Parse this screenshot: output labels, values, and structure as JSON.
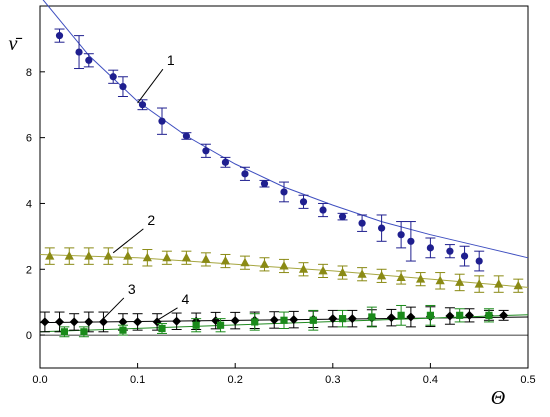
{
  "chart_data": {
    "type": "scatter",
    "title": "",
    "xlabel": "Θ",
    "ylabel": "ν̄",
    "xlim": [
      0.0,
      0.5
    ],
    "ylim": [
      -1.0,
      10.0
    ],
    "xticks": [
      "0.0",
      "0.1",
      "0.2",
      "0.3",
      "0.4",
      "0.5"
    ],
    "yticks": [
      "0",
      "2",
      "4",
      "6",
      "8"
    ],
    "grid": false,
    "legend": "none",
    "series": [
      {
        "name": "1",
        "marker": "circle",
        "color": "#1f1f8f",
        "line_color": "#3f4fc0",
        "x": [
          0.02,
          0.04,
          0.05,
          0.075,
          0.085,
          0.105,
          0.125,
          0.15,
          0.17,
          0.19,
          0.21,
          0.23,
          0.25,
          0.27,
          0.29,
          0.31,
          0.33,
          0.35,
          0.37,
          0.38,
          0.4,
          0.42,
          0.435,
          0.45
        ],
        "y": [
          9.1,
          8.6,
          8.35,
          7.85,
          7.55,
          7.0,
          6.5,
          6.05,
          5.6,
          5.25,
          4.9,
          4.6,
          4.35,
          4.05,
          3.8,
          3.6,
          3.4,
          3.25,
          3.05,
          2.85,
          2.65,
          2.55,
          2.4,
          2.25
        ],
        "err": [
          0.2,
          0.5,
          0.2,
          0.2,
          0.3,
          0.15,
          0.4,
          0.1,
          0.2,
          0.15,
          0.2,
          0.1,
          0.3,
          0.2,
          0.2,
          0.1,
          0.25,
          0.4,
          0.4,
          0.6,
          0.3,
          0.2,
          0.3,
          0.3
        ],
        "fit": {
          "x": [
            0.0,
            0.05,
            0.1,
            0.15,
            0.2,
            0.25,
            0.3,
            0.35,
            0.4,
            0.45,
            0.5
          ],
          "y": [
            10.3,
            8.5,
            7.1,
            6.05,
            5.2,
            4.5,
            3.95,
            3.45,
            3.05,
            2.7,
            2.35
          ]
        }
      },
      {
        "name": "2",
        "marker": "triangle",
        "color": "#8a8a14",
        "line_color": "#a6a640",
        "x": [
          0.01,
          0.03,
          0.05,
          0.07,
          0.09,
          0.11,
          0.13,
          0.15,
          0.17,
          0.19,
          0.21,
          0.23,
          0.25,
          0.27,
          0.29,
          0.31,
          0.33,
          0.35,
          0.37,
          0.39,
          0.41,
          0.43,
          0.45,
          0.47,
          0.49
        ],
        "y": [
          2.4,
          2.4,
          2.4,
          2.4,
          2.4,
          2.35,
          2.35,
          2.35,
          2.3,
          2.25,
          2.2,
          2.15,
          2.1,
          2.0,
          1.95,
          1.9,
          1.85,
          1.8,
          1.75,
          1.7,
          1.65,
          1.6,
          1.55,
          1.55,
          1.5
        ],
        "err": [
          0.25,
          0.25,
          0.25,
          0.25,
          0.25,
          0.25,
          0.2,
          0.2,
          0.2,
          0.2,
          0.2,
          0.2,
          0.2,
          0.2,
          0.2,
          0.2,
          0.2,
          0.2,
          0.2,
          0.2,
          0.25,
          0.25,
          0.25,
          0.25,
          0.2
        ],
        "fit": {
          "x": [
            0.0,
            0.1,
            0.2,
            0.3,
            0.4,
            0.5
          ],
          "y": [
            2.45,
            2.35,
            2.15,
            1.95,
            1.7,
            1.45
          ]
        }
      },
      {
        "name": "3",
        "marker": "diamond",
        "color": "#000000",
        "line_color": "#000000",
        "x": [
          0.005,
          0.02,
          0.035,
          0.05,
          0.065,
          0.085,
          0.1,
          0.12,
          0.14,
          0.16,
          0.18,
          0.2,
          0.22,
          0.24,
          0.26,
          0.28,
          0.3,
          0.32,
          0.34,
          0.36,
          0.38,
          0.4,
          0.42,
          0.44,
          0.46,
          0.475
        ],
        "y": [
          0.4,
          0.4,
          0.4,
          0.4,
          0.4,
          0.4,
          0.4,
          0.4,
          0.42,
          0.42,
          0.44,
          0.44,
          0.45,
          0.46,
          0.47,
          0.48,
          0.5,
          0.5,
          0.52,
          0.53,
          0.55,
          0.56,
          0.58,
          0.6,
          0.6,
          0.6
        ],
        "err": [
          0.3,
          0.3,
          0.25,
          0.3,
          0.3,
          0.25,
          0.25,
          0.25,
          0.25,
          0.25,
          0.25,
          0.25,
          0.25,
          0.25,
          0.25,
          0.25,
          0.25,
          0.25,
          0.25,
          0.25,
          0.3,
          0.3,
          0.25,
          0.2,
          0.15,
          0.15
        ],
        "fit": {
          "x": [
            0.0,
            0.5
          ],
          "y": [
            0.38,
            0.55
          ]
        }
      },
      {
        "name": "4",
        "marker": "square",
        "color": "#1a8a1a",
        "line_color": "#208a20",
        "x": [
          0.025,
          0.045,
          0.085,
          0.125,
          0.16,
          0.185,
          0.22,
          0.25,
          0.28,
          0.31,
          0.34,
          0.37,
          0.4,
          0.43,
          0.46
        ],
        "y": [
          0.1,
          0.1,
          0.15,
          0.2,
          0.3,
          0.3,
          0.4,
          0.45,
          0.45,
          0.5,
          0.55,
          0.6,
          0.6,
          0.6,
          0.6
        ],
        "err": [
          0.15,
          0.15,
          0.15,
          0.15,
          0.2,
          0.2,
          0.25,
          0.25,
          0.3,
          0.25,
          0.3,
          0.3,
          0.3,
          0.2,
          0.2
        ],
        "fit": {
          "x": [
            0.0,
            0.5
          ],
          "y": [
            0.1,
            0.62
          ]
        }
      }
    ],
    "annotations": [
      {
        "text": "1",
        "series": "1",
        "text_x": 0.13,
        "text_y": 8.2,
        "arrow_x": 0.1,
        "arrow_y": 7.05
      },
      {
        "text": "2",
        "series": "2",
        "text_x": 0.11,
        "text_y": 3.35,
        "arrow_x": 0.075,
        "arrow_y": 2.5
      },
      {
        "text": "3",
        "series": "3",
        "text_x": 0.09,
        "text_y": 1.25,
        "arrow_x": 0.065,
        "arrow_y": 0.5
      },
      {
        "text": "4",
        "series": "4",
        "text_x": 0.145,
        "text_y": 0.95,
        "arrow_x": 0.12,
        "arrow_y": 0.45
      }
    ]
  }
}
